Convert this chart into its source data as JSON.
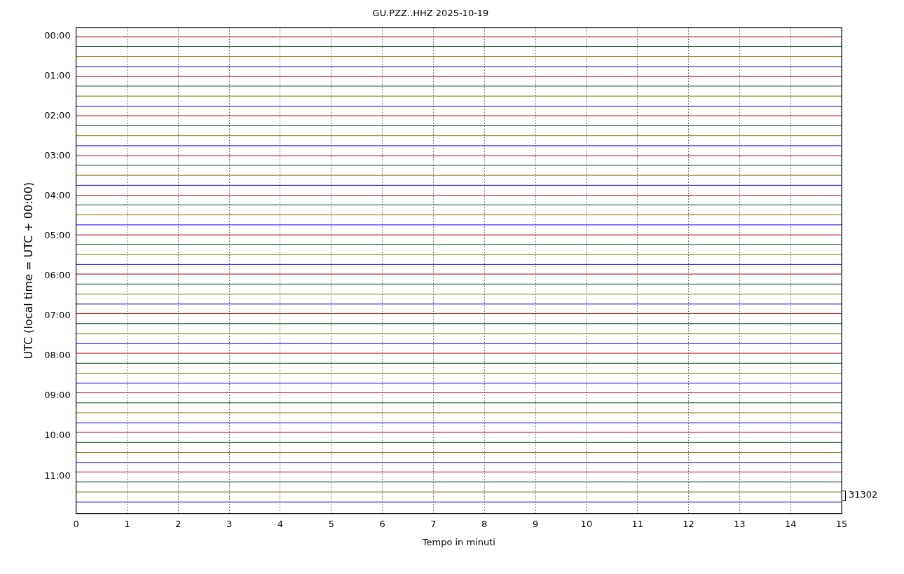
{
  "chart_data": {
    "type": "line",
    "title": "GU.PZZ..HHZ 2025-10-19",
    "xlabel": "Tempo in minuti",
    "ylabel": "UTC (local time = UTC + 00:00)",
    "x": [
      0,
      15
    ],
    "xlim": [
      0,
      15
    ],
    "xticks": [
      0,
      1,
      2,
      3,
      4,
      5,
      6,
      7,
      8,
      9,
      10,
      11,
      12,
      13,
      14,
      15
    ],
    "ylim": [
      11.94,
      -0.21
    ],
    "yticks": [
      {
        "value": 0,
        "label": "00:00"
      },
      {
        "value": 1,
        "label": "01:00"
      },
      {
        "value": 2,
        "label": "02:00"
      },
      {
        "value": 3,
        "label": "03:00"
      },
      {
        "value": 4,
        "label": "04:00"
      },
      {
        "value": 5,
        "label": "05:00"
      },
      {
        "value": 6,
        "label": "06:00"
      },
      {
        "value": 7,
        "label": "07:00"
      },
      {
        "value": 8,
        "label": "08:00"
      },
      {
        "value": 9,
        "label": "09:00"
      },
      {
        "value": 10,
        "label": "10:00"
      },
      {
        "value": 11,
        "label": "11:00"
      }
    ],
    "grid": "x",
    "legend": false,
    "marker": "none",
    "line_style": "solid",
    "annotations": [
      "31302"
    ],
    "series": [
      {
        "color": "#b2000f",
        "values": [
          0.02,
          0.02
        ]
      },
      {
        "color": "#004c12",
        "values": [
          0.26,
          0.26
        ]
      },
      {
        "color": "#847200",
        "values": [
          0.51,
          0.51
        ]
      },
      {
        "color": "#0e01ff",
        "values": [
          0.76,
          0.76
        ]
      },
      {
        "color": "#b2000f",
        "values": [
          1.01,
          1.01
        ]
      },
      {
        "color": "#004c12",
        "values": [
          1.25,
          1.25
        ]
      },
      {
        "color": "#847200",
        "values": [
          1.5,
          1.5
        ]
      },
      {
        "color": "#0e01ff",
        "values": [
          1.75,
          1.75
        ]
      },
      {
        "color": "#b2000f",
        "values": [
          1.99,
          1.99
        ]
      },
      {
        "color": "#004c12",
        "values": [
          2.24,
          2.24
        ]
      },
      {
        "color": "#847200",
        "values": [
          2.49,
          2.49
        ]
      },
      {
        "color": "#0e01ff",
        "values": [
          2.74,
          2.74
        ]
      },
      {
        "color": "#b2000f",
        "values": [
          2.99,
          2.99
        ]
      },
      {
        "color": "#004c12",
        "values": [
          3.23,
          3.23
        ]
      },
      {
        "color": "#847200",
        "values": [
          3.48,
          3.48
        ]
      },
      {
        "color": "#0e01ff",
        "values": [
          3.73,
          3.73
        ]
      },
      {
        "color": "#b2000f",
        "values": [
          3.98,
          3.98
        ]
      },
      {
        "color": "#004c12",
        "values": [
          4.22,
          4.22
        ]
      },
      {
        "color": "#847200",
        "values": [
          4.47,
          4.47
        ]
      },
      {
        "color": "#0e01ff",
        "values": [
          4.72,
          4.72
        ]
      },
      {
        "color": "#b2000f",
        "values": [
          4.97,
          4.97
        ]
      },
      {
        "color": "#004c12",
        "values": [
          5.21,
          5.21
        ]
      },
      {
        "color": "#847200",
        "values": [
          5.46,
          5.46
        ]
      },
      {
        "color": "#0e01ff",
        "values": [
          5.71,
          5.71
        ]
      },
      {
        "color": "#b2000f",
        "values": [
          5.95,
          5.95
        ]
      },
      {
        "color": "#004c12",
        "values": [
          6.2,
          6.2
        ]
      },
      {
        "color": "#847200",
        "values": [
          6.45,
          6.45
        ]
      },
      {
        "color": "#0e01ff",
        "values": [
          6.7,
          6.7
        ]
      },
      {
        "color": "#b2000f",
        "values": [
          6.94,
          6.94
        ]
      },
      {
        "color": "#004c12",
        "values": [
          7.19,
          7.19
        ]
      },
      {
        "color": "#847200",
        "values": [
          7.44,
          7.44
        ]
      },
      {
        "color": "#0e01ff",
        "values": [
          7.69,
          7.69
        ]
      },
      {
        "color": "#b2000f",
        "values": [
          7.93,
          7.93
        ]
      },
      {
        "color": "#004c12",
        "values": [
          8.18,
          8.18
        ]
      },
      {
        "color": "#847200",
        "values": [
          8.43,
          8.43
        ]
      },
      {
        "color": "#0e01ff",
        "values": [
          8.68,
          8.68
        ]
      },
      {
        "color": "#b2000f",
        "values": [
          8.92,
          8.92
        ]
      },
      {
        "color": "#004c12",
        "values": [
          9.17,
          9.17
        ]
      },
      {
        "color": "#847200",
        "values": [
          9.42,
          9.42
        ]
      },
      {
        "color": "#0e01ff",
        "values": [
          9.67,
          9.67
        ]
      },
      {
        "color": "#b2000f",
        "values": [
          9.91,
          9.91
        ]
      },
      {
        "color": "#004c12",
        "values": [
          10.16,
          10.16
        ]
      },
      {
        "color": "#847200",
        "values": [
          10.41,
          10.41
        ]
      },
      {
        "color": "#0e01ff",
        "values": [
          10.66,
          10.66
        ]
      },
      {
        "color": "#b2000f",
        "values": [
          10.9,
          10.9
        ]
      },
      {
        "color": "#004c12",
        "values": [
          11.15,
          11.15
        ]
      },
      {
        "color": "#847200",
        "values": [
          11.4,
          11.4
        ]
      },
      {
        "color": "#0e01ff",
        "values": [
          11.65,
          11.65
        ]
      }
    ]
  }
}
